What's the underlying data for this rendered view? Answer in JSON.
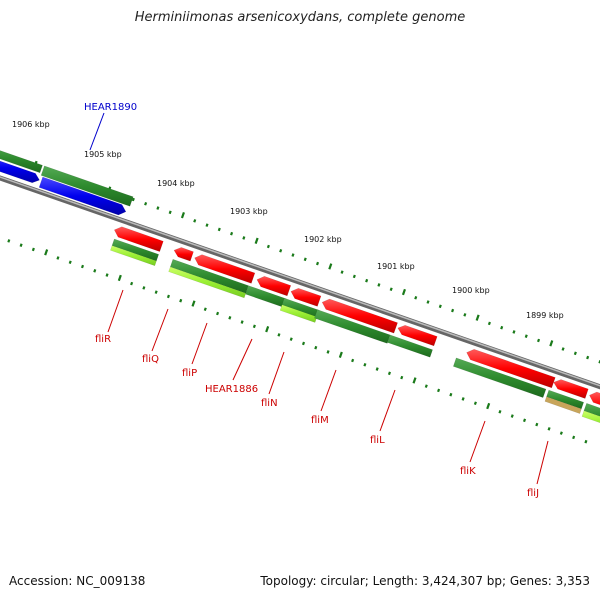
{
  "title": "Herminiimonas arsenicoxydans, complete genome",
  "footer": {
    "accession": "Accession: NC_009138",
    "summary": "Topology: circular; Length: 3,424,307 bp; Genes: 3,353"
  },
  "ticks": [
    "1906 kbp",
    "1905 kbp",
    "1904 kbp",
    "1903 kbp",
    "1902 kbp",
    "1901 kbp",
    "1900 kbp",
    "1899 kbp"
  ],
  "genes": [
    {
      "name": "HEAR1890",
      "color": "#0000cc"
    },
    {
      "name": "fliR",
      "color": "#cc0000"
    },
    {
      "name": "fliQ",
      "color": "#cc0000"
    },
    {
      "name": "fliP",
      "color": "#cc0000"
    },
    {
      "name": "HEAR1886",
      "color": "#cc0000"
    },
    {
      "name": "fliN",
      "color": "#cc0000"
    },
    {
      "name": "fliM",
      "color": "#cc0000"
    },
    {
      "name": "fliL",
      "color": "#cc0000"
    },
    {
      "name": "fliK",
      "color": "#cc0000"
    },
    {
      "name": "fliJ",
      "color": "#cc0000"
    }
  ],
  "colors": {
    "backbone": "#888888",
    "cds": "#ff0000",
    "gene": "#2e8b2e",
    "cds_minus": "#0000ee",
    "misc": "#99ee33",
    "ticks": "#1a7a1a"
  }
}
